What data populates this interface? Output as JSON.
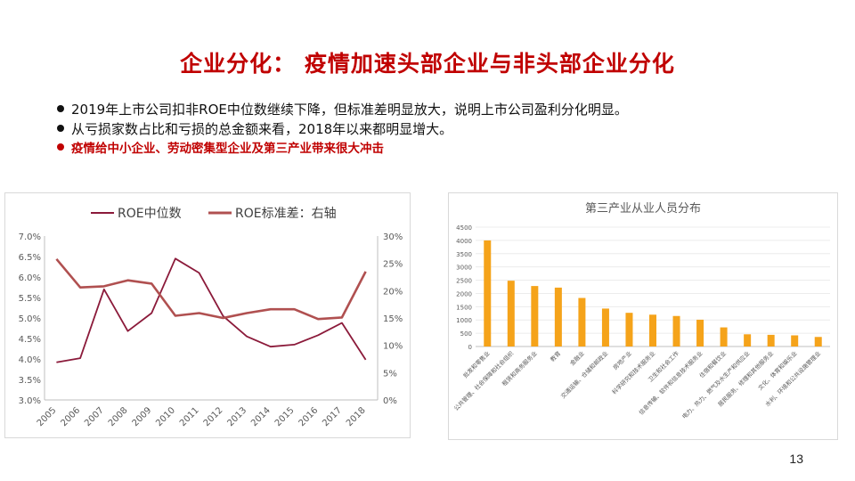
{
  "slide": {
    "title": "企业分化： 疫情加速头部企业与非头部企业分化",
    "bullets": [
      "2019年上市公司扣非ROE中位数继续下降，但标准差明显放大，说明上市公司盈利分化明显。",
      "从亏损家数占比和亏损的总金额来看，2018年以来都明显增大。"
    ],
    "highlight": "疫情给中小企业、劳动密集型企业及第三产业带来很大冲击",
    "page_number": "13"
  },
  "colors": {
    "title": "#c00000",
    "median_line": "#8b1a3a",
    "std_line": "#b05050",
    "bars": "#f5a31a"
  },
  "chart_data": [
    {
      "type": "line",
      "title": "",
      "x": [
        "2005",
        "2006",
        "2007",
        "2008",
        "2009",
        "2010",
        "2011",
        "2012",
        "2013",
        "2014",
        "2015",
        "2016",
        "2017",
        "2018"
      ],
      "series": [
        {
          "name": "ROE中位数",
          "axis": "left",
          "color": "#8b1a3a",
          "values": [
            3.92,
            4.02,
            5.7,
            4.68,
            5.12,
            6.45,
            6.1,
            5.05,
            4.55,
            4.3,
            4.35,
            4.58,
            4.88,
            3.98
          ]
        },
        {
          "name": "ROE标准差：右轴",
          "axis": "right",
          "color": "#b05050",
          "values": [
            25.8,
            20.6,
            20.8,
            21.9,
            21.3,
            15.4,
            15.9,
            15.0,
            15.9,
            16.6,
            16.6,
            14.8,
            15.1,
            23.5
          ]
        }
      ],
      "y_left": {
        "ticks": [
          "7.0%",
          "6.5%",
          "6.0%",
          "5.5%",
          "5.0%",
          "4.5%",
          "4.0%",
          "3.5%",
          "3.0%"
        ],
        "ylim": [
          3.0,
          7.0
        ]
      },
      "y_right": {
        "ticks": [
          "30%",
          "25%",
          "20%",
          "15%",
          "10%",
          "5%",
          "0%"
        ],
        "ylim": [
          0,
          30
        ]
      },
      "legend_position": "top"
    },
    {
      "type": "bar",
      "title": "第三产业从业人员分布",
      "categories": [
        "批发和零售业",
        "公共管理、社会保障和社会组织",
        "租赁和商务服务业",
        "教育",
        "金融业",
        "交通运输、仓储和邮政业",
        "房地产业",
        "科学研究和技术服务业",
        "卫生和社会工作",
        "信息传输、软件和信息技术服务业",
        "住宿和餐饮业",
        "电力、热力、燃气及水生产和供应业",
        "居民服务、修理和其他服务业",
        "文化、体育和娱乐业",
        "水利、环境和公共设施管理业"
      ],
      "values": [
        4000,
        2480,
        2280,
        2220,
        1830,
        1430,
        1270,
        1200,
        1150,
        1010,
        720,
        460,
        440,
        420,
        360
      ],
      "y_ticks": [
        "4500",
        "4000",
        "3500",
        "3000",
        "2500",
        "2000",
        "1500",
        "1000",
        "500",
        "0"
      ],
      "ylim": [
        0,
        4500
      ]
    }
  ]
}
